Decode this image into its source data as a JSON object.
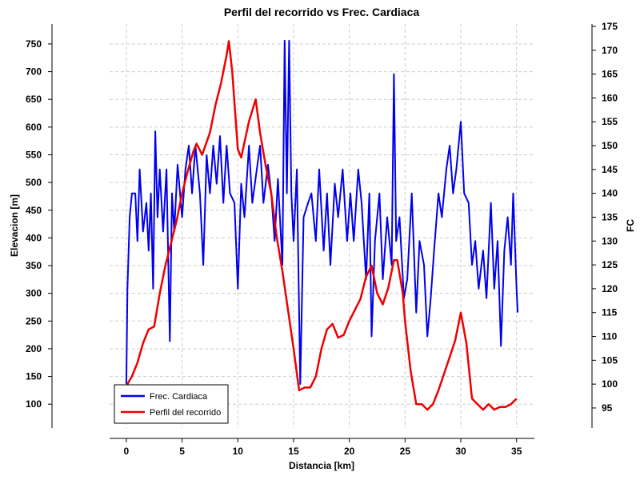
{
  "chart_data": {
    "type": "line",
    "title": "Perfil del recorrido vs Frec. Cardiaca",
    "x_label": "Distancia [km]",
    "y_label": "Elevacion [m]",
    "y2_label": "FC",
    "xlim": [
      -1.5,
      36.6
    ],
    "xticks": [
      0,
      5,
      10,
      15,
      20,
      25,
      30,
      35
    ],
    "ylim": [
      57,
      786
    ],
    "yticks": [
      100,
      150,
      200,
      250,
      300,
      350,
      400,
      450,
      500,
      550,
      600,
      650,
      700,
      750
    ],
    "y2lim": [
      90.8,
      175.5
    ],
    "y2ticks": [
      95,
      100,
      105,
      110,
      115,
      120,
      125,
      130,
      135,
      140,
      145,
      150,
      155,
      160,
      165,
      170,
      175
    ],
    "grid": true,
    "legend": "lower left",
    "series": [
      {
        "name": "Frec. Cardiaca",
        "color": "#0000ee",
        "axis": "y2",
        "x": [
          0,
          0.1,
          0.3,
          0.5,
          0.8,
          1,
          1.2,
          1.5,
          1.8,
          2,
          2.2,
          2.4,
          2.6,
          2.8,
          3,
          3.3,
          3.6,
          3.9,
          4.1,
          4.3,
          4.6,
          5,
          5.3,
          5.6,
          5.9,
          6.2,
          6.6,
          6.9,
          7.2,
          7.5,
          7.8,
          8.1,
          8.4,
          8.7,
          9,
          9.3,
          9.7,
          10,
          10.3,
          10.6,
          11,
          11.3,
          11.7,
          12,
          12.3,
          12.7,
          13,
          13.3,
          13.6,
          14,
          14.2,
          14.4,
          14.6,
          14.8,
          15,
          15.3,
          15.6,
          15.9,
          16.3,
          16.6,
          17,
          17.3,
          17.7,
          18,
          18.3,
          18.7,
          19,
          19.4,
          19.8,
          20.1,
          20.4,
          20.8,
          21.1,
          21.5,
          21.8,
          22,
          22.3,
          22.7,
          23,
          23.4,
          23.8,
          24,
          24.2,
          24.5,
          24.9,
          25.2,
          25.6,
          26,
          26.3,
          26.7,
          27,
          27.3,
          27.6,
          28,
          28.3,
          28.7,
          29,
          29.3,
          29.6,
          30,
          30.3,
          30.7,
          31,
          31.3,
          31.6,
          32,
          32.3,
          32.7,
          33,
          33.3,
          33.6,
          33.9,
          34.2,
          34.5,
          34.7,
          35,
          35.1
        ],
        "values": [
          100,
          120,
          135,
          140,
          140,
          130,
          145,
          132,
          138,
          128,
          140,
          120,
          153,
          135,
          145,
          132,
          145,
          109,
          140,
          132,
          146,
          135,
          145,
          150,
          140,
          150,
          140,
          125,
          148,
          140,
          150,
          142,
          152,
          138,
          150,
          140,
          138,
          120,
          142,
          135,
          150,
          138,
          145,
          150,
          138,
          146,
          140,
          130,
          143,
          125,
          172,
          140,
          172,
          140,
          130,
          145,
          100,
          135,
          138,
          140,
          130,
          145,
          128,
          140,
          125,
          142,
          135,
          145,
          130,
          140,
          130,
          145,
          138,
          122,
          140,
          110,
          130,
          140,
          122,
          135,
          125,
          165,
          130,
          135,
          118,
          122,
          140,
          115,
          130,
          125,
          110,
          118,
          128,
          140,
          135,
          145,
          150,
          140,
          145,
          155,
          140,
          138,
          125,
          130,
          120,
          128,
          118,
          138,
          120,
          130,
          108,
          128,
          135,
          125,
          140,
          120,
          115
        ]
      },
      {
        "name": "Perfil del recorrido",
        "color": "#ee0000",
        "x": [
          0,
          0.2,
          0.5,
          1,
          1.5,
          2,
          2.5,
          3,
          3.5,
          4,
          4.5,
          5,
          5.5,
          6,
          6.3,
          6.8,
          7.5,
          8,
          8.5,
          9,
          9.2,
          9.5,
          10,
          10.3,
          11,
          11.6,
          12,
          12.5,
          13,
          13.5,
          14,
          14.5,
          15,
          15.5,
          16,
          16.5,
          17,
          17.5,
          18,
          18.5,
          19,
          19.5,
          20,
          20.5,
          21,
          21.5,
          22,
          22.5,
          23,
          23.5,
          24,
          24.3,
          24.8,
          25,
          25.5,
          26,
          26.5,
          27,
          27.5,
          28,
          29,
          29.5,
          30,
          30.5,
          31,
          31.5,
          32,
          32.5,
          33,
          33.5,
          34,
          34.5,
          35
        ],
        "values": [
          130,
          140,
          150,
          175,
          210,
          235,
          240,
          300,
          350,
          390,
          430,
          480,
          520,
          555,
          570,
          550,
          590,
          640,
          680,
          730,
          755,
          700,
          560,
          545,
          610,
          650,
          590,
          530,
          480,
          400,
          340,
          270,
          200,
          125,
          130,
          130,
          150,
          200,
          235,
          245,
          220,
          225,
          250,
          270,
          290,
          330,
          350,
          300,
          280,
          310,
          360,
          360,
          300,
          250,
          160,
          100,
          100,
          90,
          100,
          125,
          185,
          215,
          265,
          210,
          110,
          100,
          90,
          100,
          90,
          95,
          95,
          100,
          110
        ]
      }
    ]
  }
}
